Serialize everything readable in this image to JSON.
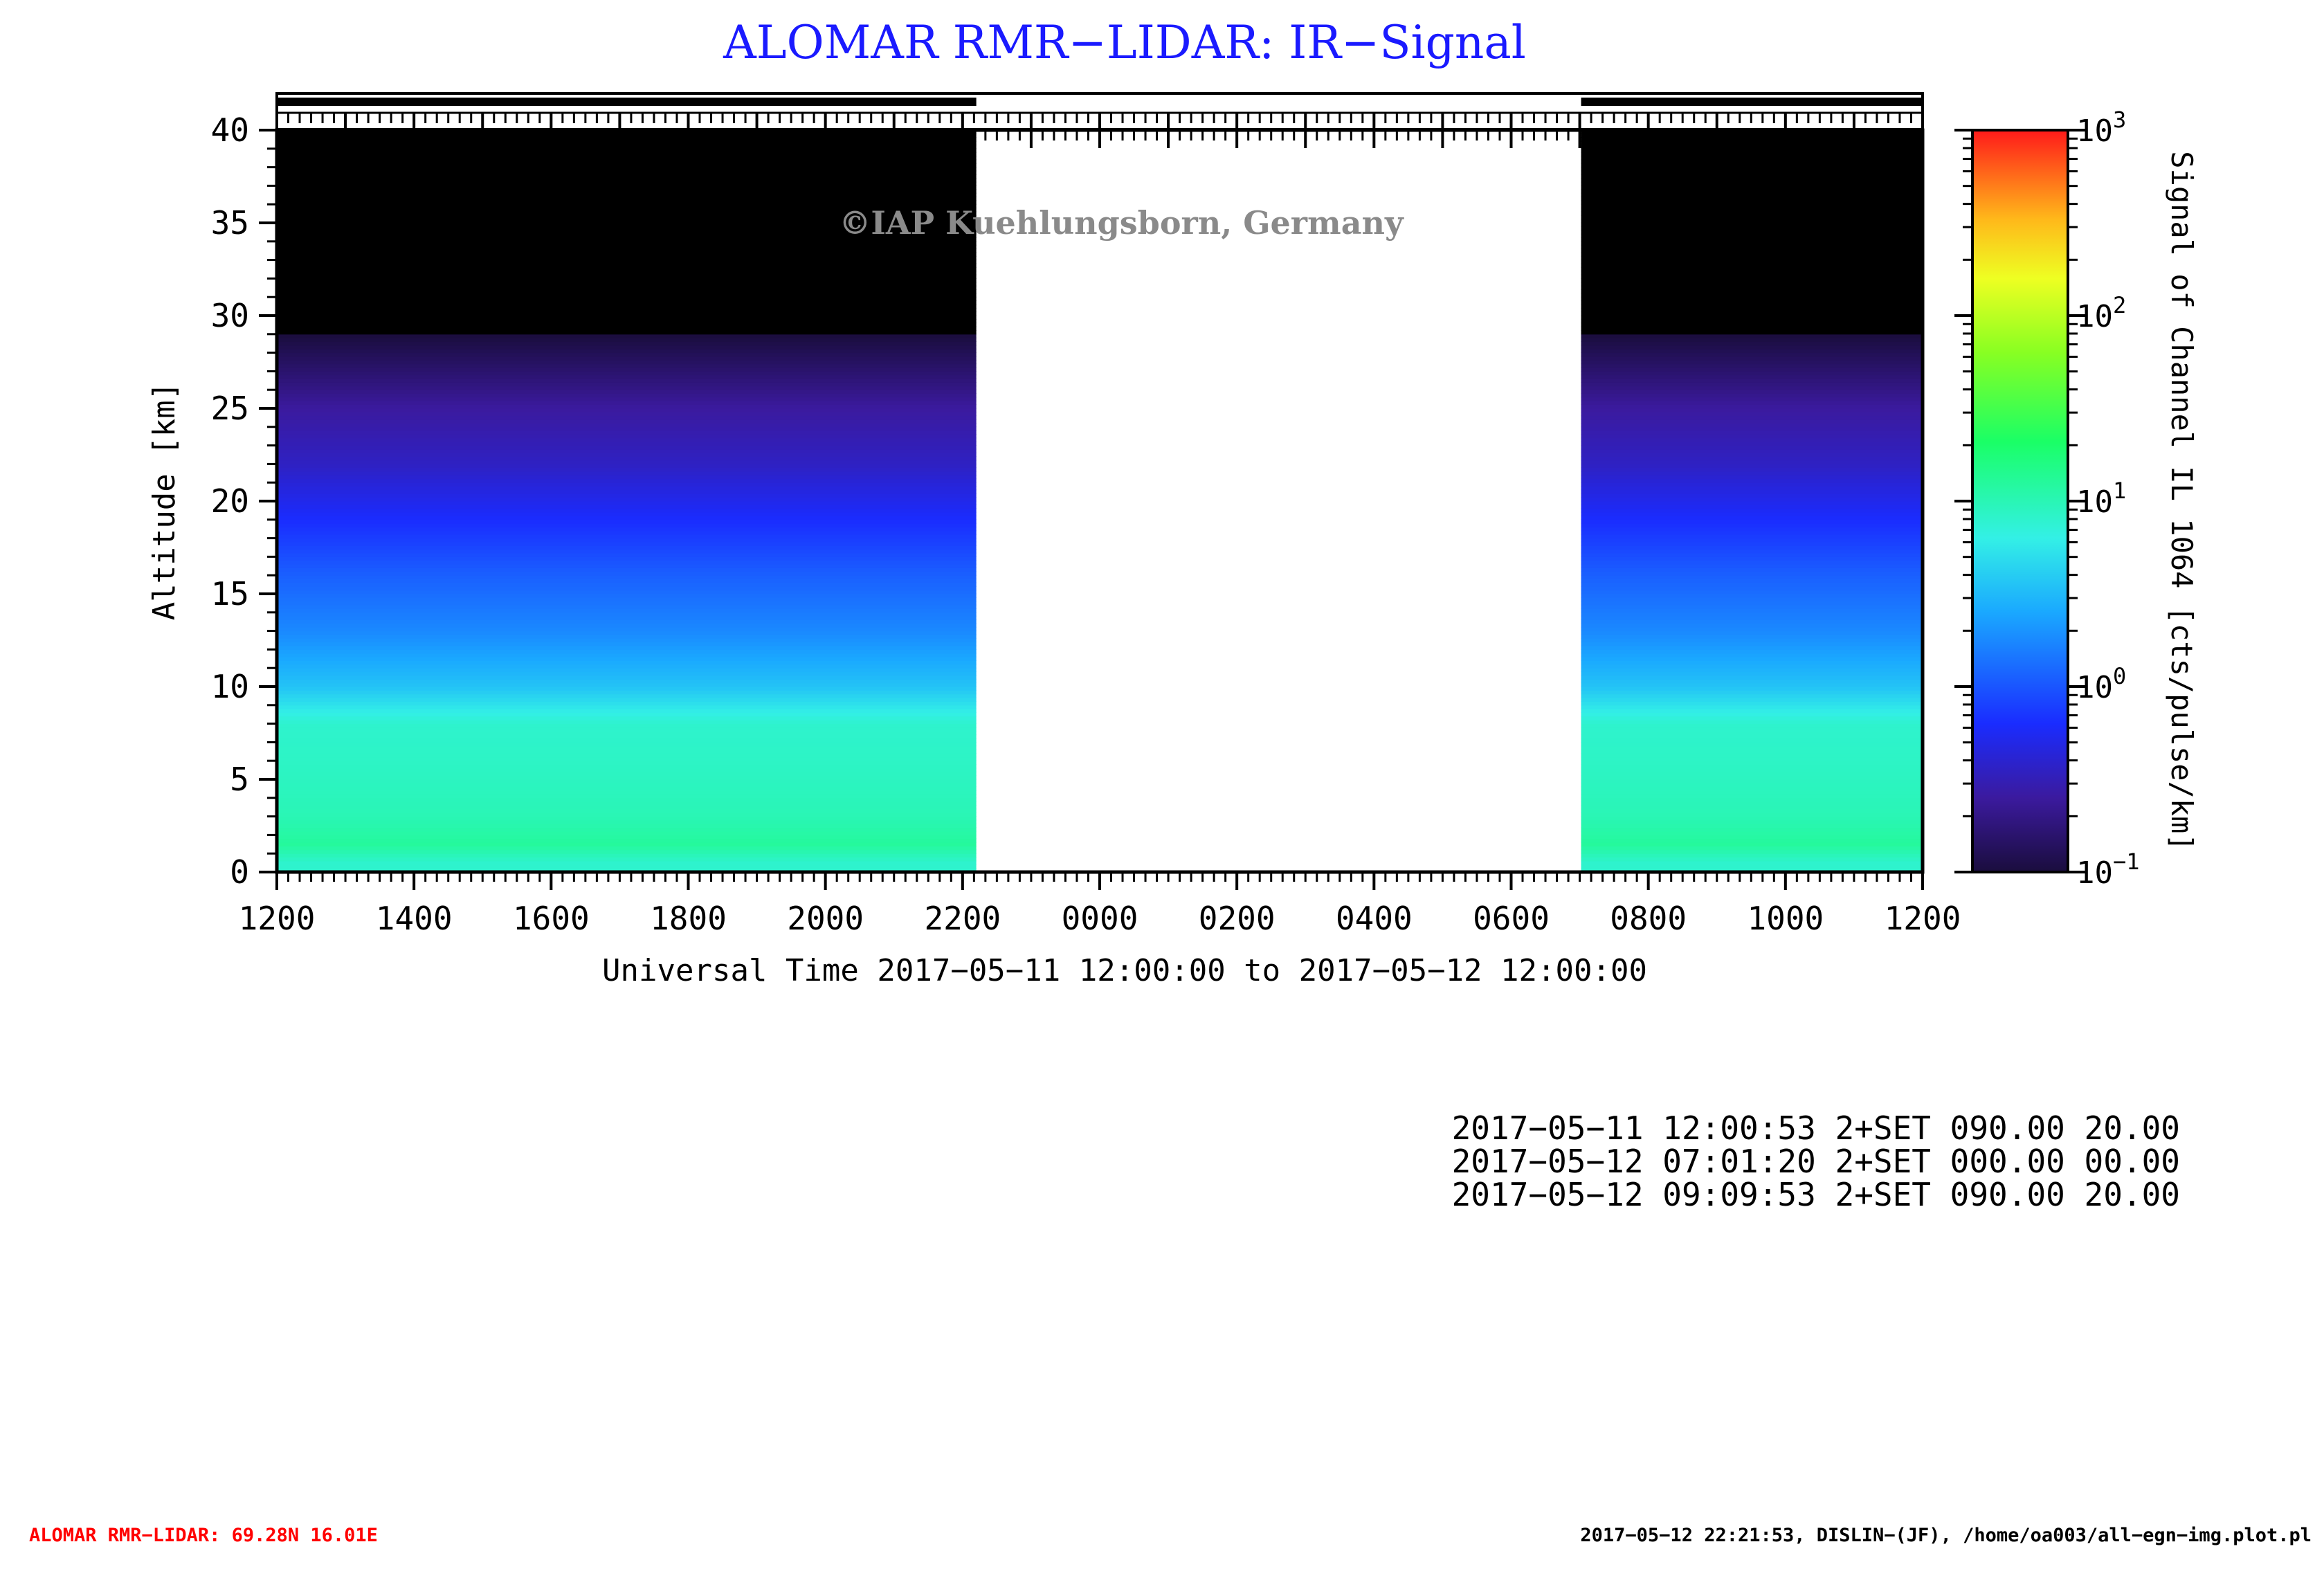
{
  "title": "ALOMAR RMR−LIDAR: IR−Signal",
  "watermark": "©IAP Kuehlungsborn, Germany",
  "colors": {
    "title": "#1a1aff",
    "footer_left": "#ff0000",
    "text": "#000000",
    "watermark": "#8a8a8a"
  },
  "chart_data": {
    "type": "heatmap",
    "title": "ALOMAR RMR−LIDAR: IR−Signal",
    "xlabel": "Universal Time 2017−05−11 12:00:00 to 2017−05−12 12:00:00",
    "ylabel": "Altitude [km]",
    "colorbar_label": "Signal of Channel IL 1064 [cts/pulse/km]",
    "x_tick_labels": [
      "1200",
      "1400",
      "1600",
      "1800",
      "2000",
      "2200",
      "0000",
      "0200",
      "0400",
      "0600",
      "0800",
      "1000",
      "1200"
    ],
    "xlim_hours": [
      0,
      24
    ],
    "ylim_km": [
      0,
      40
    ],
    "y_ticks": [
      0,
      5,
      10,
      15,
      20,
      25,
      30,
      35,
      40
    ],
    "colorbar_log_range": [
      -1,
      3
    ],
    "colorbar_ticks": [
      {
        "base": "10",
        "exp": "−1",
        "value": -1
      },
      {
        "base": "10",
        "exp": "0",
        "value": 0
      },
      {
        "base": "10",
        "exp": "1",
        "value": 1
      },
      {
        "base": "10",
        "exp": "2",
        "value": 2
      },
      {
        "base": "10",
        "exp": "3",
        "value": 3
      }
    ],
    "data_segments": [
      {
        "start_hour": 0.0,
        "end_hour": 10.2
      },
      {
        "start_hour": 19.02,
        "end_hour": 24.0
      }
    ],
    "profile": [
      {
        "altitude_km": 0.5,
        "log_signal": 0.9
      },
      {
        "altitude_km": 1.5,
        "log_signal": 1.1
      },
      {
        "altitude_km": 3,
        "log_signal": 1.0
      },
      {
        "altitude_km": 5,
        "log_signal": 0.95
      },
      {
        "altitude_km": 8,
        "log_signal": 0.9
      },
      {
        "altitude_km": 10,
        "log_signal": 0.55
      },
      {
        "altitude_km": 13,
        "log_signal": 0.25
      },
      {
        "altitude_km": 16,
        "log_signal": 0.05
      },
      {
        "altitude_km": 19,
        "log_signal": -0.2
      },
      {
        "altitude_km": 22,
        "log_signal": -0.45
      },
      {
        "altitude_km": 25,
        "log_signal": -0.6
      },
      {
        "altitude_km": 27,
        "log_signal": -0.8
      },
      {
        "altitude_km": 29,
        "log_signal": -1.0
      },
      {
        "altitude_km": 32,
        "log_signal": -1.4
      },
      {
        "altitude_km": 40,
        "log_signal": -2.0
      }
    ],
    "grid": false
  },
  "settings_lines": [
    "2017−05−11 12:00:53 2+SET 090.00 20.00",
    "2017−05−12 07:01:20 2+SET 000.00 00.00",
    "2017−05−12 09:09:53 2+SET 090.00 20.00"
  ],
  "footer": {
    "left": "ALOMAR RMR−LIDAR: 69.28N 16.01E",
    "right": "2017−05−12 22:21:53, DISLIN−(JF), /home/oa003/all−egn−img.plot.pl"
  }
}
